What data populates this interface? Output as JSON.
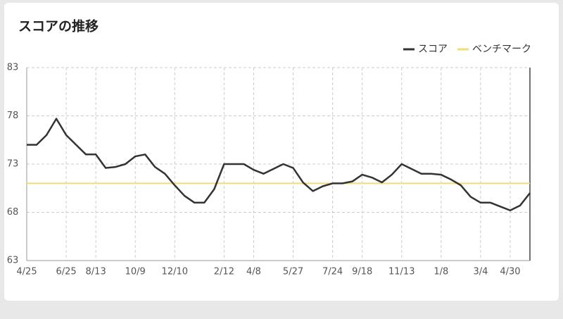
{
  "chart_data": {
    "type": "line",
    "title": "スコアの推移",
    "categories": [
      "4/25",
      null,
      null,
      null,
      "6/25",
      null,
      null,
      "8/13",
      null,
      null,
      null,
      "10/9",
      null,
      null,
      null,
      "12/10",
      null,
      null,
      null,
      null,
      "2/12",
      null,
      null,
      "4/8",
      null,
      null,
      null,
      "5/27",
      null,
      null,
      null,
      "7/24",
      null,
      null,
      "9/18",
      null,
      null,
      null,
      "11/13",
      null,
      null,
      null,
      "1/8",
      null,
      null,
      null,
      "3/4",
      null,
      null,
      "4/30",
      null,
      null
    ],
    "series": [
      {
        "name": "スコア",
        "color": "#333333",
        "values": [
          75,
          75,
          76,
          77.7,
          76,
          75,
          74,
          74,
          72.6,
          72.7,
          73,
          73.8,
          74,
          72.7,
          72,
          70.8,
          69.7,
          69,
          69,
          70.4,
          73,
          73,
          73,
          72.4,
          72,
          72.5,
          73,
          72.6,
          71.1,
          70.2,
          70.7,
          71,
          71,
          71.2,
          71.9,
          71.6,
          71.1,
          71.9,
          73,
          72.5,
          72,
          72,
          71.9,
          71.4,
          70.8,
          69.6,
          69,
          69,
          68.6,
          68.2,
          68.7,
          70
        ]
      }
    ],
    "reference_line": {
      "name": "ベンチマーク",
      "color": "#f0dc78",
      "value": 71
    },
    "ylim": [
      63,
      83
    ],
    "yticks": [
      63,
      68,
      73,
      78,
      83
    ],
    "grid": true,
    "legend": "top-right"
  }
}
